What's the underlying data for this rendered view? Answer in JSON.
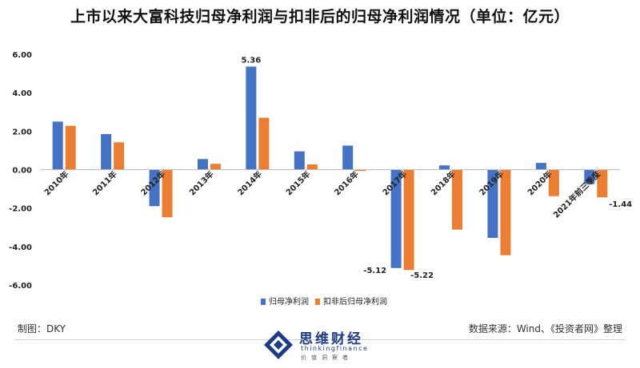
{
  "title": "上市以来大富科技归母净利润与扣非后的归母净利润情况（单位：亿元）",
  "footer": {
    "left": "制图：DKY",
    "right": "数据来源：Wind、《投资者网》整理"
  },
  "logo": {
    "name": "思维财经",
    "english": "thinkingfinance",
    "subtitle": "价值洞察者"
  },
  "colors": {
    "series1": "#4472C4",
    "series2": "#ED7D31"
  },
  "chart_data": {
    "type": "bar",
    "title": "上市以来大富科技归母净利润与扣非后的归母净利润情况（单位：亿元）",
    "categories": [
      "2010年",
      "2011年",
      "2012年",
      "2013年",
      "2014年",
      "2015年",
      "2016年",
      "2017年",
      "2018年",
      "2019年",
      "2020年",
      "2021年前三季度"
    ],
    "series": [
      {
        "name": "归母净利润",
        "values": [
          2.5,
          1.85,
          -1.9,
          0.55,
          5.36,
          0.95,
          1.25,
          -5.12,
          0.22,
          -3.55,
          0.35,
          -0.75
        ]
      },
      {
        "name": "扣非后归母净利润",
        "values": [
          2.28,
          1.42,
          -2.48,
          0.3,
          2.7,
          0.27,
          -0.07,
          -5.22,
          -3.12,
          -4.45,
          -1.38,
          -1.44
        ]
      }
    ],
    "data_labels": [
      {
        "series": 0,
        "index": 4,
        "text": "5.36"
      },
      {
        "series": 0,
        "index": 7,
        "text": "-5.12"
      },
      {
        "series": 1,
        "index": 7,
        "text": "-5.22"
      },
      {
        "series": 1,
        "index": 11,
        "text": "-1.44"
      }
    ],
    "yticks": [
      "6.00",
      "4.00",
      "2.00",
      "0.00",
      "-2.00",
      "-4.00",
      "-6.00"
    ],
    "ylim": [
      -6,
      6
    ],
    "grid": false,
    "legend": "bottom"
  }
}
